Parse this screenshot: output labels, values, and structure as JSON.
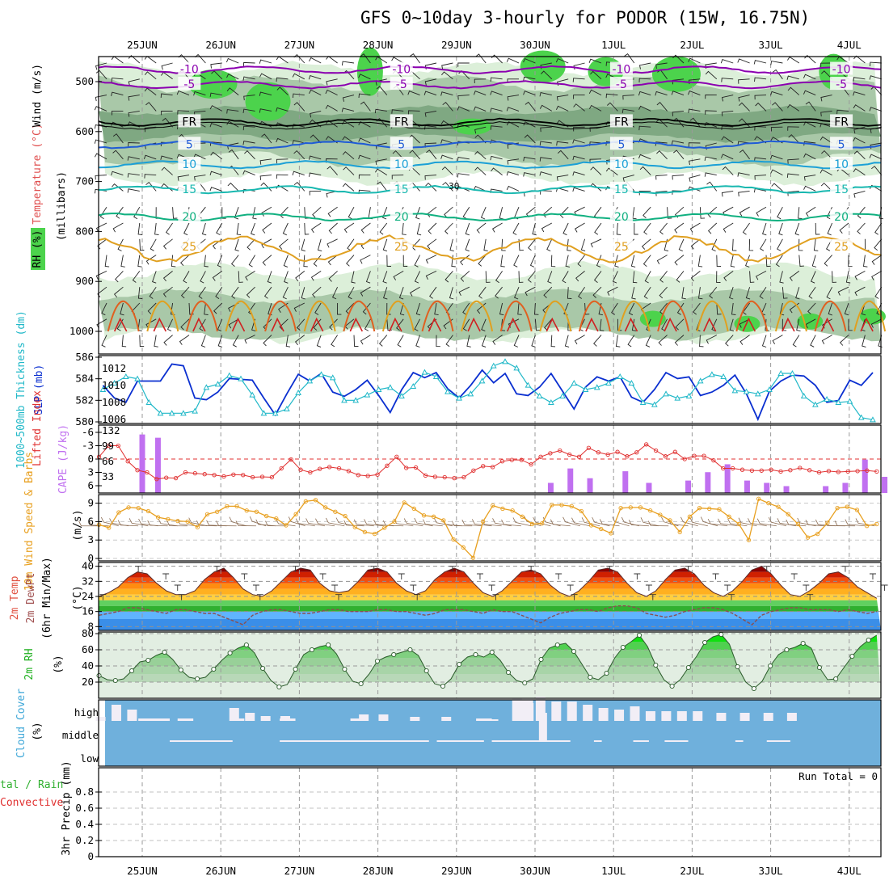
{
  "title": "GFS 0~10day 3-hourly for PODOR (15W, 16.75N)",
  "date_labels": [
    "25JUN",
    "26JUN",
    "27JUN",
    "28JUN",
    "29JUN",
    "30JUN",
    "1JUL",
    "2JUL",
    "3JUL",
    "4JUL"
  ],
  "colors": {
    "rh_light": "#dcefd9",
    "rh_mid": "#a9c8a8",
    "rh_dark": "#7fa882",
    "rh_green": "#4cd34c",
    "temp_neg": "#8b00b0",
    "temp_fr": "#000000",
    "temp_5": "#1f5bd6",
    "temp_10": "#1ca0d6",
    "temp_15": "#19b8b0",
    "temp_20": "#10b080",
    "temp_25": "#e0a020",
    "temp_30": "#e06020",
    "slp": "#0a2fd0",
    "thickness": "#20b8c8",
    "li": "#e03030",
    "cape": "#c070f0",
    "wind10": "#e8a020",
    "cloud_bg": "#6fb0dc",
    "cloud_fg": "#f2eef6"
  },
  "chart_data": [
    {
      "type": "contour",
      "panel": "upper-air",
      "y_axis_label": "(millibars)",
      "legend_labels": [
        "RH (%)",
        "Temperature (°C)",
        "Wind (m/s)"
      ],
      "y_ticks": [
        500,
        600,
        700,
        800,
        900,
        1000
      ],
      "ylim": [
        1000,
        450
      ],
      "isotherms": [
        {
          "label": "-10",
          "level": 475
        },
        {
          "label": "-5",
          "level": 505
        },
        {
          "label": "FR",
          "level": 580
        },
        {
          "label": "5",
          "level": 625
        },
        {
          "label": "10",
          "level": 665
        },
        {
          "label": "15",
          "level": 715
        },
        {
          "label": "20",
          "level": 770
        },
        {
          "label": "25",
          "level": 830
        },
        {
          "label": "30",
          "level": 715
        }
      ]
    },
    {
      "type": "line",
      "panel": "slp-thickness",
      "left_axis_label": "1000~500mb Thickness (dm)",
      "right_axis_label": "SLP (mb)",
      "left_ticks": [
        580,
        582,
        584,
        586
      ],
      "right_ticks": [
        1006,
        1008,
        1010,
        1012
      ],
      "ylim_left": [
        580,
        586
      ],
      "ylim_right": [
        1005.5,
        1013.5
      ],
      "series": [
        {
          "name": "SLP (mb)",
          "axis": "right",
          "values": [
            1010,
            1008.5,
            1008,
            1010.5,
            1010.5,
            1010.5,
            1012.5,
            1012.3,
            1008.5,
            1008.3,
            1009.2,
            1010.8,
            1010.7,
            1010.6,
            1008.5,
            1006.5,
            1009.0,
            1011.3,
            1010.5,
            1011.4,
            1009.2,
            1008.7,
            1009.5,
            1010.6,
            1008.8,
            1006.8,
            1009.5,
            1011.5,
            1010.9,
            1011.5,
            1009.6,
            1008.5,
            1010.0,
            1011.8,
            1010.3,
            1011.4,
            1009.0,
            1008.8,
            1009.8,
            1011.4,
            1009.3,
            1007.2,
            1009.8,
            1011.0,
            1010.5,
            1011.0,
            1008.6,
            1008.0,
            1009.5,
            1011.5,
            1010.8,
            1011.0,
            1008.8,
            1009.2,
            1010.0,
            1011.2,
            1009.0,
            1006.0,
            1009.3,
            1010.5,
            1011.2,
            1011.1,
            1010.0,
            1008.0,
            1008.2,
            1010.6,
            1010.0,
            1011.5
          ]
        },
        {
          "name": "1000~500mb Thickness (dm)",
          "axis": "left",
          "values": [
            583.0,
            583.6,
            584.2,
            584.0,
            581.8,
            580.8,
            580.8,
            580.8,
            581.0,
            583.2,
            583.5,
            584.3,
            584.0,
            582.5,
            580.8,
            580.8,
            581.2,
            582.7,
            583.8,
            584.4,
            584.1,
            582.0,
            582.0,
            582.5,
            583.0,
            583.2,
            582.4,
            583.3,
            584.6,
            584.2,
            582.8,
            582.2,
            582.6,
            583.8,
            585.2,
            585.6,
            585.0,
            583.4,
            582.4,
            581.8,
            582.4,
            583.6,
            583.0,
            583.2,
            583.6,
            584.2,
            583.6,
            581.8,
            581.6,
            582.6,
            582.2,
            582.4,
            583.8,
            584.4,
            584.2,
            582.9,
            582.8,
            582.6,
            583.0,
            584.5,
            584.5,
            582.4,
            581.6,
            582.1,
            581.8,
            581.9,
            580.4,
            580.2
          ]
        }
      ]
    },
    {
      "type": "bar",
      "panel": "lifted-index-cape",
      "left_axis_label": "Lifted Index",
      "right_axis_label": "CAPE (J/kg)",
      "li_ticks": [
        -6,
        -3,
        0,
        3,
        6
      ],
      "cape_ticks": [
        33,
        66,
        99,
        132
      ],
      "series": [
        {
          "name": "Lifted Index",
          "type": "line",
          "values": [
            -0.5,
            -3,
            -3,
            0.5,
            2.5,
            3,
            4.5,
            4.2,
            4.3,
            3,
            3.2,
            3.4,
            3.6,
            3.9,
            3.5,
            3.6,
            4.1,
            4.0,
            4.1,
            2.1,
            0.1,
            2.4,
            3.0,
            2.2,
            1.8,
            2.1,
            2.7,
            3.6,
            3.8,
            3.5,
            1.5,
            -0.5,
            2,
            1.9,
            3.7,
            4.0,
            4.1,
            4.3,
            4.1,
            2.6,
            1.6,
            1.8,
            0.5,
            0.2,
            0.2,
            1.2,
            -0.5,
            -1.3,
            -1.9,
            -1.0,
            -0.5,
            -2.5,
            -1.5,
            -1.0,
            -1.6,
            -0.6,
            -1.5,
            -3.3,
            -1.9,
            -0.6,
            -1.6,
            0,
            -0.7,
            -0.7,
            0.3,
            2.1,
            2.1,
            2.4,
            2.6,
            2.6,
            2.4,
            2.8,
            2.5,
            2.0,
            2.5,
            3.0,
            2.7,
            2.9,
            2.8,
            2.7,
            2.6,
            2.8
          ]
        },
        {
          "name": "CAPE (J/kg)",
          "type": "bar",
          "bars": [
            [
              0.55,
              124
            ],
            [
              0.75,
              117
            ],
            [
              5.75,
              20
            ],
            [
              6.0,
              51
            ],
            [
              6.25,
              30
            ],
            [
              6.7,
              45
            ],
            [
              7.0,
              20
            ],
            [
              7.5,
              25
            ],
            [
              7.75,
              43
            ],
            [
              8.0,
              60
            ],
            [
              8.25,
              25
            ],
            [
              8.5,
              20
            ],
            [
              8.75,
              13
            ],
            [
              9.25,
              13
            ],
            [
              9.5,
              20
            ],
            [
              9.75,
              70
            ],
            [
              10.0,
              33
            ],
            [
              10.25,
              20
            ],
            [
              10.5,
              40
            ],
            [
              10.75,
              20
            ],
            [
              11.0,
              15
            ]
          ]
        }
      ]
    },
    {
      "type": "line",
      "panel": "wind-10m",
      "left_axis_label": "10m Wind Speed & Barbs",
      "unit_label": "(m/s)",
      "ylim": [
        0,
        10
      ],
      "y_ticks": [
        0,
        3,
        6,
        9
      ],
      "series": [
        {
          "name": "10m Wind Speed",
          "values": [
            5.5,
            5.0,
            7.5,
            8.3,
            8.2,
            7.7,
            6.7,
            6.4,
            6.1,
            6.0,
            5.1,
            7.2,
            7.6,
            8.5,
            8.5,
            7.8,
            7.6,
            6.9,
            6.5,
            5.4,
            7.2,
            9.3,
            9.5,
            8.3,
            7.6,
            6.9,
            5.1,
            4.3,
            4.0,
            5.0,
            6.0,
            9.1,
            8.1,
            7.0,
            6.8,
            6.2,
            3.1,
            1.8,
            0.1,
            6.0,
            8.6,
            8.1,
            7.8,
            6.8,
            5.6,
            5.7,
            8.7,
            8.7,
            8.5,
            7.7,
            5.4,
            4.8,
            4.1,
            8.2,
            8.3,
            8.3,
            7.8,
            7.1,
            6.2,
            4.3,
            6.8,
            8.2,
            8.1,
            8.0,
            6.8,
            5.6,
            3.0,
            9.7,
            9.0,
            8.4,
            7.2,
            5.6,
            3.4,
            4.0,
            5.8,
            8.2,
            8.4,
            7.9,
            5.3,
            5.6
          ]
        }
      ]
    },
    {
      "type": "area",
      "panel": "temp-dewpoint",
      "left_axis_label": "2m Temp 2m DewPt (6hr Min/Max)",
      "unit_label": "(°C)",
      "ylim": [
        6,
        42
      ],
      "y_ticks": [
        8,
        16,
        24,
        32,
        40
      ],
      "series": [
        {
          "name": "2m Temp",
          "values": [
            24,
            26,
            29,
            34,
            37,
            36,
            31,
            27,
            25,
            25,
            27,
            33,
            37,
            39,
            34,
            28,
            25,
            24,
            27,
            32,
            37,
            39,
            38,
            31,
            27,
            26,
            27,
            32,
            38,
            39,
            37,
            31,
            27,
            25,
            27,
            33,
            37,
            39,
            37,
            31,
            26,
            24,
            27,
            32,
            37,
            38,
            36,
            30,
            26,
            24,
            27,
            32,
            38,
            39,
            37,
            31,
            26,
            24,
            27,
            33,
            38,
            39,
            36,
            30,
            26,
            24,
            27,
            32,
            38,
            40,
            36,
            30,
            25,
            24,
            27,
            31,
            36,
            37,
            34,
            29,
            26,
            23
          ]
        },
        {
          "name": "2m DewPt",
          "values": [
            14,
            15,
            16,
            18,
            18,
            17,
            16,
            15,
            17,
            17,
            16,
            15,
            15,
            13,
            11,
            9,
            14,
            16,
            17,
            17,
            16,
            15,
            15,
            16,
            17,
            17,
            16,
            16,
            16,
            17,
            17,
            16,
            16,
            15,
            14,
            15,
            17,
            17,
            17,
            16,
            15,
            17,
            16,
            16,
            14,
            12,
            10,
            13,
            15,
            16,
            17,
            17,
            16,
            18,
            19,
            19,
            18,
            15,
            14,
            13,
            14,
            16,
            17,
            18,
            18,
            17,
            15,
            12,
            9,
            14,
            16,
            17,
            18,
            18,
            17,
            17,
            17,
            16,
            17,
            16,
            15,
            16
          ]
        }
      ]
    },
    {
      "type": "area",
      "panel": "rh-2m",
      "left_axis_label": "2m RH",
      "unit_label": "(%)",
      "ylim": [
        0,
        82
      ],
      "y_ticks": [
        20,
        40,
        60,
        80
      ],
      "series": [
        {
          "name": "2m RH",
          "values": [
            28,
            23,
            22,
            24,
            34,
            45,
            47,
            53,
            57,
            48,
            35,
            26,
            24,
            26,
            36,
            47,
            56,
            62,
            66,
            56,
            37,
            22,
            14,
            17,
            36,
            54,
            60,
            64,
            66,
            55,
            36,
            21,
            18,
            30,
            46,
            51,
            54,
            57,
            60,
            53,
            34,
            18,
            15,
            24,
            42,
            51,
            54,
            51,
            57,
            47,
            32,
            22,
            19,
            24,
            48,
            62,
            66,
            68,
            58,
            42,
            26,
            23,
            31,
            50,
            63,
            70,
            78,
            64,
            41,
            23,
            15,
            23,
            38,
            52,
            69,
            76,
            79,
            67,
            39,
            20,
            12,
            21,
            40,
            54,
            60,
            63,
            68,
            62,
            38,
            23,
            24,
            38,
            52,
            64,
            72,
            78
          ]
        }
      ]
    },
    {
      "type": "bar",
      "panel": "cloud-cover",
      "left_axis_label": "Cloud Cover",
      "unit_label": "(%)",
      "level_labels": [
        "high",
        "middle",
        "low"
      ]
    },
    {
      "type": "bar",
      "panel": "precip",
      "left_axis_label": "Total / Rain Convective",
      "unit_label": "3hr Precip (mm)",
      "annotation": "Run Total = 0",
      "ylim": [
        0,
        1
      ],
      "y_ticks": [
        0,
        0.2,
        0.4,
        0.6,
        0.8
      ],
      "bars": []
    }
  ]
}
